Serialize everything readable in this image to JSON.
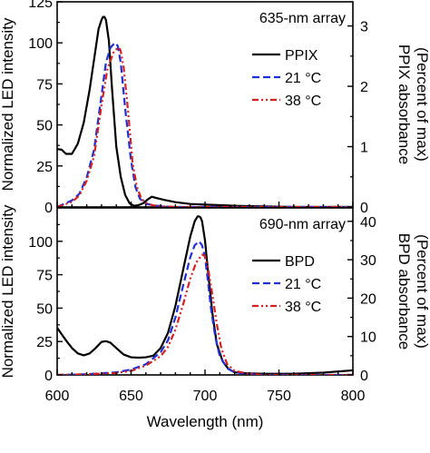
{
  "chart_data": [
    {
      "type": "line",
      "title": "635-nm array",
      "xlabel": "Wavelength (nm)",
      "ylabel_left": "Normalized LED intensity",
      "ylabel_right": "PPIX absorbance\n(Percent of max)",
      "xlim": [
        600,
        800
      ],
      "ylim_left": [
        0,
        125
      ],
      "ylim_right": [
        0,
        3.4
      ],
      "xticks": [
        "600",
        "650",
        "700",
        "750",
        "800"
      ],
      "yticks_left": [
        "0",
        "25",
        "50",
        "75",
        "100",
        "125"
      ],
      "yticks_right": [
        "0",
        "1",
        "2",
        "3"
      ],
      "legend_position": "top-right",
      "series": [
        {
          "name": "PPIX",
          "axis": "right",
          "color": "#000000",
          "dash": "solid",
          "x": [
            600,
            603,
            606,
            610,
            614,
            618,
            622,
            625,
            628,
            630,
            631,
            632,
            633,
            635,
            637,
            640,
            643,
            646,
            649,
            652,
            655,
            658,
            661,
            664,
            667,
            672,
            680,
            690,
            700,
            720,
            740,
            760,
            780,
            800
          ],
          "y": [
            0.96,
            0.95,
            0.88,
            0.88,
            1.05,
            1.4,
            1.95,
            2.45,
            2.95,
            3.1,
            3.15,
            3.15,
            3.1,
            2.75,
            2.0,
            1.0,
            0.5,
            0.2,
            0.06,
            0.02,
            0.03,
            0.06,
            0.12,
            0.17,
            0.15,
            0.12,
            0.08,
            0.05,
            0.04,
            0.02,
            0.01,
            0.0,
            0.0,
            0.0
          ]
        },
        {
          "name": "21 °C",
          "axis": "left",
          "color": "#1f2fd6",
          "dash": "dashed",
          "x": [
            600,
            610,
            615,
            620,
            625,
            630,
            633,
            636,
            639,
            640,
            641,
            643,
            646,
            650,
            653,
            656,
            660,
            665,
            670,
            680,
            700,
            800
          ],
          "y": [
            0,
            4,
            8,
            18,
            35,
            68,
            88,
            97,
            100,
            99.5,
            98,
            88,
            60,
            28,
            12,
            5,
            2,
            1,
            0.5,
            0,
            0,
            0
          ]
        },
        {
          "name": "38 °C",
          "axis": "left",
          "color": "#d61f1f",
          "dash": "dashdotdot",
          "x": [
            600,
            610,
            615,
            620,
            625,
            630,
            634,
            638,
            641,
            642,
            643,
            645,
            648,
            651,
            654,
            657,
            661,
            665,
            670,
            680,
            700,
            800
          ],
          "y": [
            0,
            3,
            7,
            16,
            31,
            62,
            84,
            94,
            97,
            97,
            95,
            85,
            58,
            27,
            12,
            5,
            2,
            1,
            0.5,
            0,
            0,
            0
          ]
        }
      ]
    },
    {
      "type": "line",
      "title": "690-nm array",
      "xlabel": "Wavelength (nm)",
      "ylabel_left": "Normalized LED intensity",
      "ylabel_right": "BPD absorbance\n(Percent of max)",
      "xlim": [
        600,
        800
      ],
      "ylim_left": [
        0,
        125
      ],
      "ylim_right": [
        0,
        43.5
      ],
      "xticks": [
        "600",
        "650",
        "700",
        "750",
        "800"
      ],
      "yticks_left": [
        "0",
        "25",
        "50",
        "75",
        "100"
      ],
      "yticks_right": [
        "0",
        "10",
        "20",
        "30",
        "40"
      ],
      "legend_position": "top-right",
      "series": [
        {
          "name": "BPD",
          "axis": "right",
          "color": "#000000",
          "dash": "solid",
          "x": [
            600,
            603,
            606,
            610,
            614,
            618,
            622,
            626,
            630,
            633,
            636,
            640,
            645,
            650,
            655,
            660,
            665,
            670,
            675,
            680,
            685,
            690,
            693,
            695,
            696,
            697,
            698,
            700,
            702,
            705,
            708,
            712,
            716,
            720,
            725,
            730,
            740,
            760,
            780,
            800
          ],
          "y": [
            12.3,
            10.6,
            9.0,
            7.0,
            5.6,
            5.1,
            5.6,
            7.0,
            8.6,
            8.8,
            8.4,
            7.0,
            5.3,
            4.6,
            4.5,
            4.6,
            5.0,
            7.0,
            11.0,
            18.0,
            27.0,
            36.0,
            40.0,
            41.3,
            41.3,
            41.0,
            40.0,
            35.0,
            27.0,
            16.0,
            8.0,
            3.5,
            1.5,
            0.7,
            0.5,
            0.4,
            0.3,
            0.3,
            0.6,
            1.2
          ]
        },
        {
          "name": "21 °C",
          "axis": "left",
          "color": "#1f2fd6",
          "dash": "dashed",
          "x": [
            600,
            620,
            640,
            650,
            660,
            670,
            675,
            680,
            685,
            690,
            693,
            696,
            698,
            700,
            702,
            704,
            707,
            710,
            715,
            720,
            730,
            740,
            800
          ],
          "y": [
            0,
            0.5,
            2,
            4,
            8,
            17,
            26,
            43,
            66,
            88,
            97,
            100,
            97,
            88,
            70,
            50,
            28,
            14,
            5,
            2,
            0.5,
            0,
            0
          ]
        },
        {
          "name": "38 °C",
          "axis": "left",
          "color": "#d61f1f",
          "dash": "dashdotdot",
          "x": [
            600,
            620,
            640,
            650,
            660,
            670,
            675,
            680,
            685,
            690,
            694,
            698,
            700,
            702,
            705,
            708,
            711,
            715,
            720,
            730,
            740,
            800
          ],
          "y": [
            0,
            0.5,
            1.5,
            3,
            7,
            14,
            21,
            34,
            52,
            72,
            84,
            90,
            89,
            80,
            60,
            38,
            20,
            8,
            3,
            0.8,
            0,
            0
          ]
        }
      ]
    }
  ]
}
